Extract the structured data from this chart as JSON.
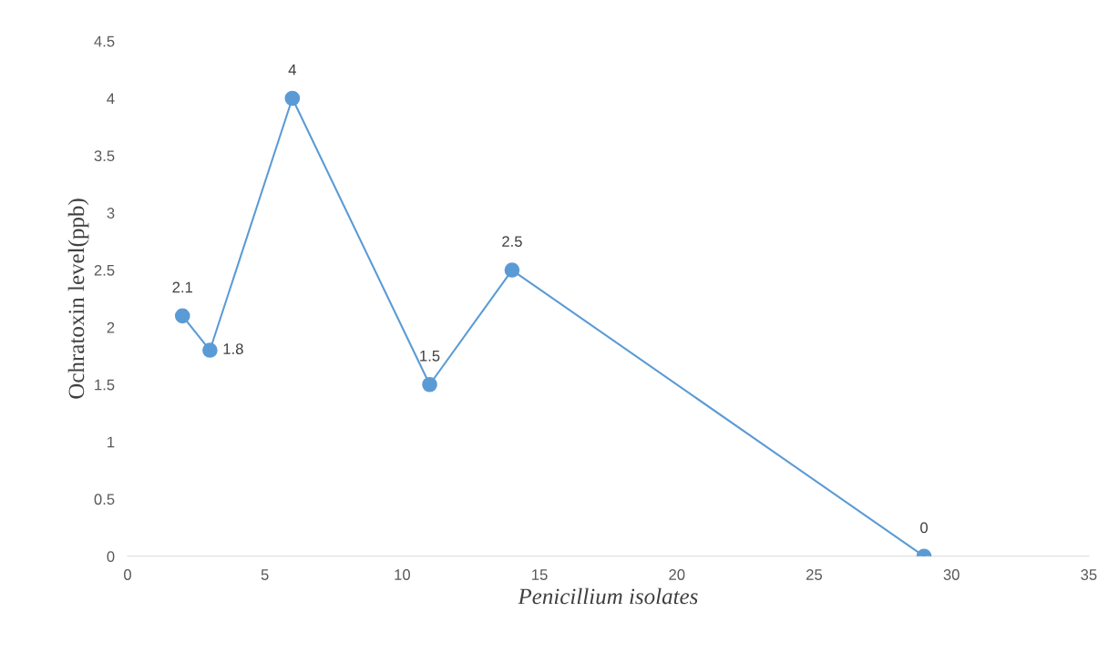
{
  "chart_data": {
    "type": "line",
    "xlabel": "Penicillium isolates",
    "ylabel": "Ochratoxin level(ppb)",
    "x": [
      2,
      3,
      6,
      11,
      14,
      29
    ],
    "series": [
      {
        "color": "#5b9bd5",
        "values": [
          2.1,
          1.8,
          4,
          1.5,
          2.5,
          0
        ]
      }
    ],
    "xlim": [
      0,
      35
    ],
    "xticks": [
      0,
      5,
      10,
      15,
      20,
      25,
      30,
      35
    ],
    "ylim": [
      0,
      4.5
    ],
    "yticks": [
      0,
      0.5,
      1,
      1.5,
      2,
      2.5,
      3,
      3.5,
      4,
      4.5
    ],
    "grid": false,
    "legend": false,
    "marker": "circle",
    "line_style": "solid",
    "data_labels": true
  }
}
